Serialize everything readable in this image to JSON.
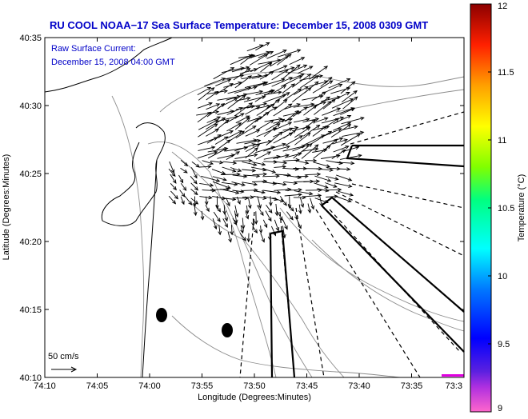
{
  "chart_data": {
    "type": "map-vector-field",
    "title": "RU COOL  NOAA−17  Sea Surface Temperature:  December 15, 2008 0309 GMT",
    "subtitle_lines": [
      "Raw Surface Current:",
      "December 15, 2008 04:00 GMT"
    ],
    "xlabel": "Longitude (Degrees:Minutes)",
    "ylabel": "Latitude (Degrees:Minutes)",
    "colorbar_label": "Temperature (°C)",
    "x_ticks": [
      "74:10",
      "74:05",
      "74:00",
      "73:55",
      "73:50",
      "73:45",
      "73:40",
      "73:35",
      "73:3"
    ],
    "y_ticks": [
      "40:35",
      "40:30",
      "40:25",
      "40:20",
      "40:15",
      "40:10"
    ],
    "xlim_minutes": [
      -610,
      -570
    ],
    "ylim_minutes": [
      2410,
      2435
    ],
    "colorbar_ticks": [
      "12",
      "11.5",
      "11",
      "10.5",
      "10",
      "9.5",
      "9"
    ],
    "colorbar_range": [
      9,
      12
    ],
    "scale_label": "50 cm/s",
    "scale_speed_cms": 50,
    "vector_field": {
      "description": "Sampled surface current vectors (lon/lat in decimal minutes, u/v in cm/s)",
      "lon_range": [
        -600,
        -581
      ],
      "lat_range": [
        2419,
        2434
      ],
      "dominant_direction": "east to northeast",
      "typical_speed_cms": 40
    },
    "landmarks": [
      {
        "name": "buoy-1",
        "lon": -598.8,
        "lat": 2414.7
      },
      {
        "name": "buoy-2",
        "lon": -592.2,
        "lat": 2413.5
      }
    ],
    "colors": {
      "title": "#0000c8",
      "coast": "#000000",
      "contour": "#8c8c8c",
      "vectors": "#000000",
      "bar_mark": "#e000e0"
    }
  }
}
